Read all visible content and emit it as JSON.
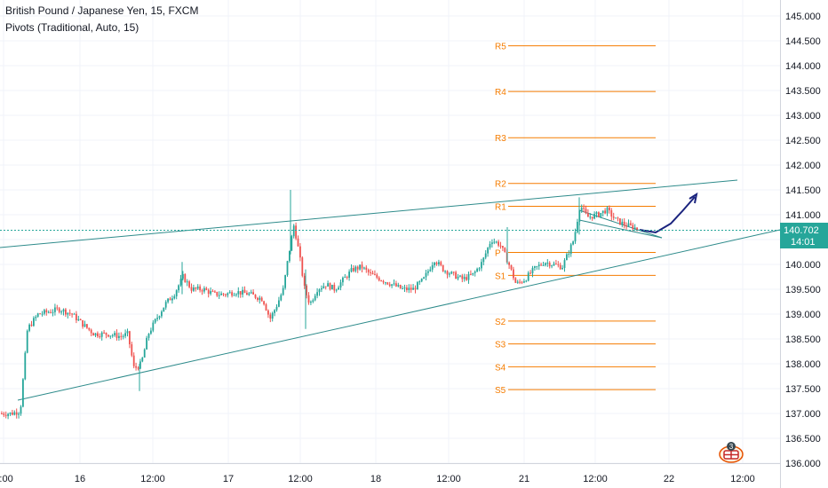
{
  "header": {
    "title": "British Pound / Japanese Yen, 15, FXCM",
    "indicator": "Pivots (Traditional, Auto, 15)"
  },
  "chart_data": {
    "type": "candlestick",
    "symbol": "British Pound / Japanese Yen",
    "interval": "15",
    "source": "FXCM",
    "ylim": [
      136.0,
      145.2
    ],
    "y_ticks": [
      "145.000",
      "144.500",
      "144.000",
      "143.500",
      "143.000",
      "142.500",
      "142.000",
      "141.500",
      "141.000",
      "140.500",
      "140.000",
      "139.500",
      "139.000",
      "138.500",
      "138.000",
      "137.500",
      "137.000",
      "136.500",
      "136.000"
    ],
    "x_ticks": [
      "2:00",
      "16",
      "12:00",
      "17",
      "12:00",
      "18",
      "12:00",
      "21",
      "12:00",
      "22",
      "12:00"
    ],
    "last_price": "140.702",
    "countdown": "14:01",
    "colors": {
      "up": "#26a69a",
      "down": "#ef5350",
      "pivot": "#f57c00",
      "trend": "#2e8b8b",
      "projection": "#1a237e",
      "last_line": "#26a69a"
    },
    "price_path": [
      [
        0,
        137.0
      ],
      [
        12,
        137.0
      ],
      [
        22,
        137.05
      ],
      [
        30,
        138.7
      ],
      [
        42,
        139.0
      ],
      [
        55,
        139.05
      ],
      [
        66,
        139.1
      ],
      [
        80,
        139.0
      ],
      [
        92,
        138.8
      ],
      [
        105,
        138.6
      ],
      [
        120,
        138.6
      ],
      [
        135,
        138.55
      ],
      [
        143,
        138.6
      ],
      [
        150,
        137.9
      ],
      [
        158,
        138.0
      ],
      [
        166,
        138.6
      ],
      [
        175,
        138.9
      ],
      [
        185,
        139.2
      ],
      [
        195,
        139.4
      ],
      [
        205,
        139.75
      ],
      [
        215,
        139.5
      ],
      [
        228,
        139.5
      ],
      [
        240,
        139.4
      ],
      [
        252,
        139.4
      ],
      [
        265,
        139.45
      ],
      [
        280,
        139.4
      ],
      [
        295,
        139.3
      ],
      [
        303,
        138.9
      ],
      [
        310,
        139.15
      ],
      [
        318,
        139.5
      ],
      [
        324,
        140.2
      ],
      [
        330,
        140.8
      ],
      [
        336,
        140.2
      ],
      [
        342,
        139.5
      ],
      [
        348,
        139.2
      ],
      [
        356,
        139.5
      ],
      [
        366,
        139.6
      ],
      [
        376,
        139.5
      ],
      [
        386,
        139.7
      ],
      [
        396,
        139.9
      ],
      [
        406,
        139.95
      ],
      [
        416,
        139.8
      ],
      [
        428,
        139.7
      ],
      [
        440,
        139.6
      ],
      [
        452,
        139.5
      ],
      [
        464,
        139.5
      ],
      [
        476,
        139.7
      ],
      [
        488,
        140.1
      ],
      [
        498,
        139.9
      ],
      [
        508,
        139.8
      ],
      [
        520,
        139.7
      ],
      [
        532,
        139.8
      ],
      [
        542,
        140.05
      ],
      [
        552,
        140.5
      ],
      [
        562,
        140.4
      ],
      [
        571,
        140.05
      ],
      [
        580,
        139.6
      ],
      [
        590,
        139.7
      ],
      [
        600,
        139.9
      ],
      [
        612,
        140.05
      ],
      [
        622,
        140.0
      ],
      [
        632,
        139.95
      ],
      [
        638,
        140.2
      ],
      [
        645,
        140.5
      ],
      [
        652,
        141.2
      ],
      [
        660,
        140.95
      ],
      [
        672,
        141.0
      ],
      [
        682,
        141.1
      ],
      [
        692,
        140.9
      ],
      [
        702,
        140.8
      ],
      [
        712,
        140.75
      ],
      [
        718,
        140.7
      ]
    ],
    "pivots": [
      {
        "label": "R5",
        "value": 144.4
      },
      {
        "label": "R4",
        "value": 143.48
      },
      {
        "label": "R3",
        "value": 142.55
      },
      {
        "label": "R2",
        "value": 141.63
      },
      {
        "label": "R1",
        "value": 141.17
      },
      {
        "label": "P",
        "value": 140.24
      },
      {
        "label": "S1",
        "value": 139.78
      },
      {
        "label": "S2",
        "value": 138.86
      },
      {
        "label": "S3",
        "value": 138.4
      },
      {
        "label": "S4",
        "value": 137.94
      },
      {
        "label": "S5",
        "value": 137.48
      }
    ]
  }
}
